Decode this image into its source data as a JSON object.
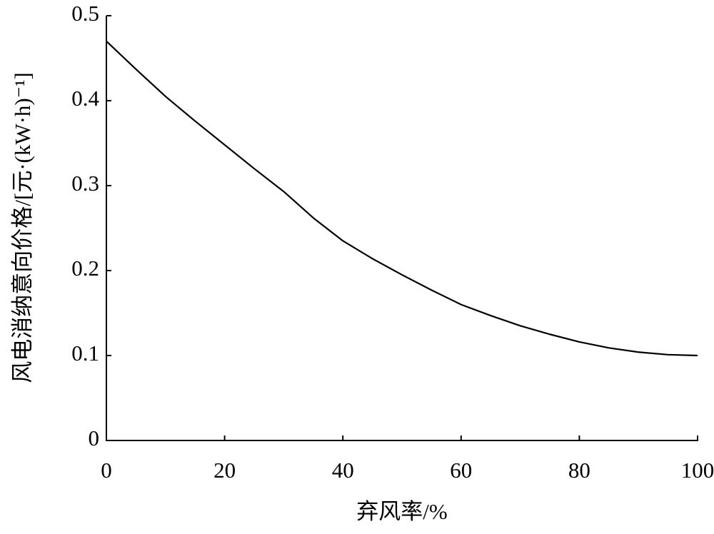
{
  "chart_data": {
    "type": "line",
    "x_label": "弃风率/%",
    "y_label": "风电消纳意向价格/[元·(kW·h)⁻¹]",
    "x": [
      0,
      5,
      10,
      15,
      20,
      25,
      30,
      35,
      40,
      45,
      50,
      55,
      60,
      65,
      70,
      75,
      80,
      85,
      90,
      95,
      100
    ],
    "series": [
      {
        "name": "风电消纳意向价格",
        "color": "#000000",
        "values": [
          0.47,
          0.437,
          0.405,
          0.376,
          0.348,
          0.32,
          0.293,
          0.262,
          0.235,
          0.214,
          0.195,
          0.177,
          0.16,
          0.147,
          0.135,
          0.125,
          0.116,
          0.109,
          0.104,
          0.101,
          0.1
        ]
      }
    ],
    "xlim": [
      0,
      100
    ],
    "xticks": [
      0,
      20,
      40,
      60,
      80,
      100
    ],
    "ylim": [
      0,
      0.5
    ],
    "yticks": [
      0,
      0.1,
      0.2,
      0.3,
      0.4,
      0.5
    ]
  }
}
